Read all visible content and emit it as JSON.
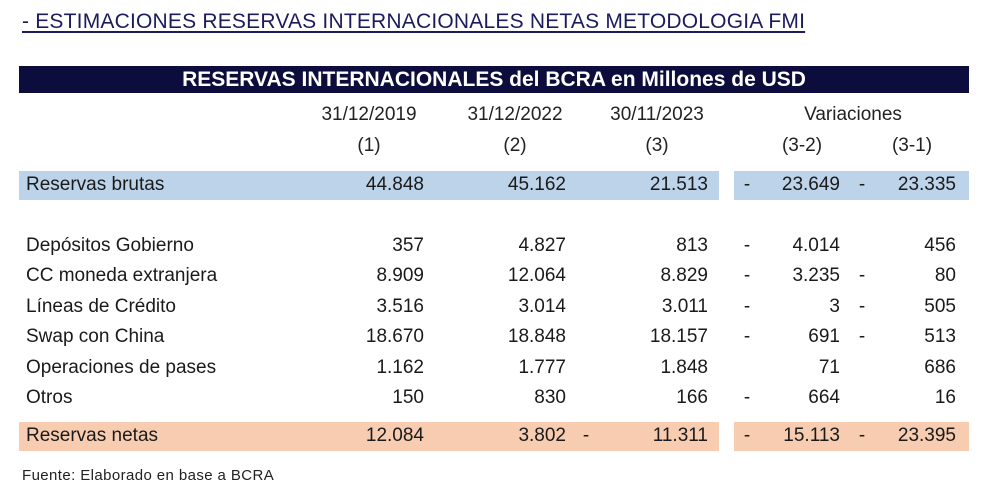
{
  "heading": "- ESTIMACIONES RESERVAS INTERNACIONALES NETAS METODOLOGIA FMI",
  "title": "RESERVAS INTERNACIONALES del BCRA en Millones de USD",
  "columns": {
    "date1": "31/12/2019",
    "date2": "31/12/2022",
    "date3": "30/11/2023",
    "idx1": "(1)",
    "idx2": "(2)",
    "idx3": "(3)",
    "variations": "Variaciones",
    "var32": "(3-2)",
    "var31": "(3-1)"
  },
  "rows": [
    {
      "label": "Reservas brutas",
      "v1": "44.848",
      "v2": "45.162",
      "s3": "",
      "v3": "21.513",
      "s32": "-",
      "d32": "23.649",
      "s31": "-",
      "d31": "23.335"
    },
    {
      "label": "Depósitos Gobierno",
      "v1": "357",
      "v2": "4.827",
      "s3": "",
      "v3": "813",
      "s32": "-",
      "d32": "4.014",
      "s31": "",
      "d31": "456"
    },
    {
      "label": "CC moneda extranjera",
      "v1": "8.909",
      "v2": "12.064",
      "s3": "",
      "v3": "8.829",
      "s32": "-",
      "d32": "3.235",
      "s31": "-",
      "d31": "80"
    },
    {
      "label": "Líneas de Crédito",
      "v1": "3.516",
      "v2": "3.014",
      "s3": "",
      "v3": "3.011",
      "s32": "-",
      "d32": "3",
      "s31": "-",
      "d31": "505"
    },
    {
      "label": "Swap con China",
      "v1": "18.670",
      "v2": "18.848",
      "s3": "",
      "v3": "18.157",
      "s32": "-",
      "d32": "691",
      "s31": "-",
      "d31": "513"
    },
    {
      "label": "Operaciones de pases",
      "v1": "1.162",
      "v2": "1.777",
      "s3": "",
      "v3": "1.848",
      "s32": "",
      "d32": "71",
      "s31": "",
      "d31": "686"
    },
    {
      "label": "Otros",
      "v1": "150",
      "v2": "830",
      "s3": "",
      "v3": "166",
      "s32": "-",
      "d32": "664",
      "s31": "",
      "d31": "16"
    },
    {
      "label": "Reservas netas",
      "v1": "12.084",
      "v2": "3.802",
      "s3": "-",
      "v3": "11.311",
      "s32": "-",
      "d32": "15.113",
      "s31": "-",
      "d31": "23.395"
    }
  ],
  "source": "Fuente: Elaborado en base a BCRA",
  "colors": {
    "title_bar": "#0d0d3d",
    "gross_band": "#bcd3ea",
    "net_band": "#f7ccb0"
  }
}
